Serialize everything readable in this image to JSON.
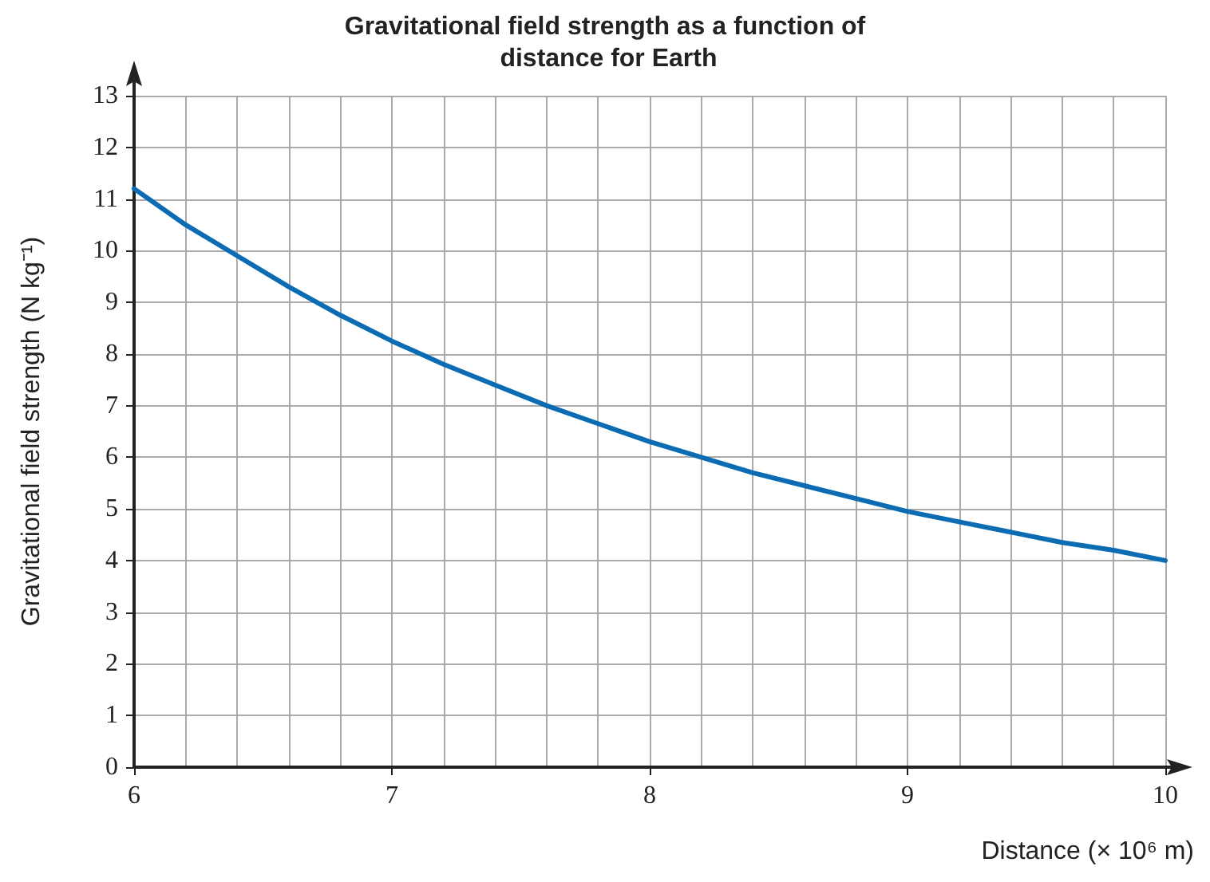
{
  "chart_data": {
    "type": "line",
    "title": "Gravitational field strength as a function of distance for Earth",
    "xlabel": "Distance (× 10⁶ m)",
    "ylabel": "Gravitational field strength (N kg⁻¹)",
    "x": [
      6,
      6.2,
      6.4,
      6.6,
      6.8,
      7,
      7.2,
      7.4,
      7.6,
      7.8,
      8,
      8.2,
      8.4,
      8.6,
      8.8,
      9,
      9.2,
      9.4,
      9.6,
      9.8,
      10
    ],
    "series": [
      {
        "color": "#0b6cb3",
        "values": [
          11.2,
          10.5,
          9.9,
          9.3,
          8.75,
          8.25,
          7.8,
          7.4,
          7.0,
          6.65,
          6.3,
          6.0,
          5.7,
          5.45,
          5.2,
          4.95,
          4.75,
          4.55,
          4.35,
          4.2,
          4.0
        ]
      }
    ],
    "xlim": [
      6,
      10
    ],
    "xticks": [
      6,
      7,
      8,
      9,
      10
    ],
    "ylim": [
      0,
      13
    ],
    "yticks": [
      0,
      1,
      2,
      3,
      4,
      5,
      6,
      7,
      8,
      9,
      10,
      11,
      12,
      13
    ],
    "grid": true,
    "marker": "none",
    "line_style": "solid"
  }
}
